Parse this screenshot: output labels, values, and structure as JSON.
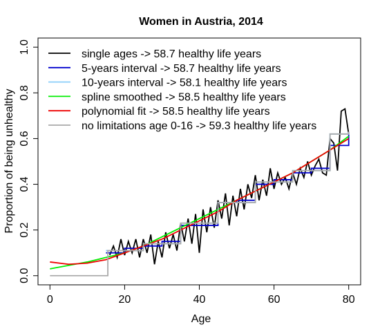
{
  "chart_data": {
    "type": "line",
    "title": "Women in Austria, 2014",
    "xlabel": "Age",
    "ylabel": "Proportion of being unhealthy",
    "xlim": [
      -3.2,
      83.2
    ],
    "ylim": [
      -0.04,
      1.04
    ],
    "xticks": [
      0,
      20,
      40,
      60,
      80
    ],
    "yticks": [
      {
        "value": 0,
        "label": "0.0"
      },
      0.2,
      0.4,
      0.6,
      0.8,
      {
        "value": 1,
        "label": "1.0"
      }
    ],
    "legend": "top-left",
    "series": [
      {
        "name": "single ages -> 58.7 healthy life years",
        "color": "#000000",
        "step": false,
        "x": [
          16,
          17,
          18,
          19,
          20,
          21,
          22,
          23,
          24,
          25,
          26,
          27,
          28,
          29,
          30,
          31,
          32,
          33,
          34,
          35,
          36,
          37,
          38,
          39,
          40,
          41,
          42,
          43,
          44,
          45,
          46,
          47,
          48,
          49,
          50,
          51,
          52,
          53,
          54,
          55,
          56,
          57,
          58,
          59,
          60,
          61,
          62,
          63,
          64,
          65,
          66,
          67,
          68,
          69,
          70,
          71,
          72,
          73,
          74,
          75,
          76,
          77,
          78,
          79,
          80
        ],
        "values": [
          0.09,
          0.13,
          0.08,
          0.16,
          0.09,
          0.15,
          0.1,
          0.16,
          0.08,
          0.16,
          0.1,
          0.18,
          0.05,
          0.15,
          0.08,
          0.19,
          0.12,
          0.18,
          0.11,
          0.23,
          0.15,
          0.25,
          0.14,
          0.27,
          0.1,
          0.29,
          0.19,
          0.3,
          0.21,
          0.33,
          0.25,
          0.36,
          0.22,
          0.35,
          0.26,
          0.38,
          0.29,
          0.4,
          0.34,
          0.44,
          0.33,
          0.42,
          0.35,
          0.47,
          0.38,
          0.45,
          0.4,
          0.43,
          0.38,
          0.45,
          0.4,
          0.47,
          0.43,
          0.5,
          0.44,
          0.48,
          0.51,
          0.45,
          0.44,
          0.6,
          0.58,
          0.46,
          0.72,
          0.73,
          0.62
        ]
      },
      {
        "name": "5-years interval -> 58.7 healthy life years",
        "color": "#0000cd",
        "step": true,
        "x": [
          15,
          20,
          25,
          30,
          35,
          40,
          45,
          50,
          55,
          60,
          65,
          70,
          75,
          80
        ],
        "values": [
          0.1,
          0.12,
          0.13,
          0.15,
          0.22,
          0.22,
          0.32,
          0.33,
          0.4,
          0.42,
          0.45,
          0.47,
          0.57,
          0.63
        ]
      },
      {
        "name": "10-years interval -> 58.1 healthy life years",
        "color": "#87cefa",
        "step": true,
        "x": [
          15,
          25,
          35,
          45,
          55,
          65,
          75,
          80
        ],
        "values": [
          0.11,
          0.14,
          0.23,
          0.32,
          0.41,
          0.46,
          0.62,
          0.63
        ]
      },
      {
        "name": "spline smoothed -> 58.5 healthy life years",
        "color": "#00ee00",
        "step": false,
        "x": [
          0,
          5,
          10,
          15,
          20,
          25,
          30,
          35,
          40,
          45,
          50,
          55,
          60,
          65,
          70,
          75,
          80
        ],
        "values": [
          0.03,
          0.045,
          0.06,
          0.08,
          0.1,
          0.13,
          0.17,
          0.21,
          0.25,
          0.29,
          0.33,
          0.37,
          0.41,
          0.45,
          0.5,
          0.55,
          0.61
        ]
      },
      {
        "name": "polynomial fit -> 58.5 healthy life years",
        "color": "#ee0000",
        "step": false,
        "x": [
          0,
          5,
          10,
          15,
          20,
          25,
          30,
          35,
          40,
          45,
          50,
          55,
          60,
          65,
          70,
          75,
          80
        ],
        "values": [
          0.06,
          0.05,
          0.055,
          0.07,
          0.1,
          0.13,
          0.16,
          0.2,
          0.24,
          0.28,
          0.33,
          0.37,
          0.41,
          0.45,
          0.5,
          0.55,
          0.6
        ]
      },
      {
        "name": "no limitations age 0-16 -> 59.3 healthy life years",
        "color": "#aaaaaa",
        "step": true,
        "x": [
          0,
          15.5,
          25,
          35,
          45,
          55,
          65,
          75,
          80
        ],
        "values": [
          0,
          0.11,
          0.14,
          0.23,
          0.32,
          0.41,
          0.46,
          0.62,
          0.63
        ]
      }
    ]
  }
}
